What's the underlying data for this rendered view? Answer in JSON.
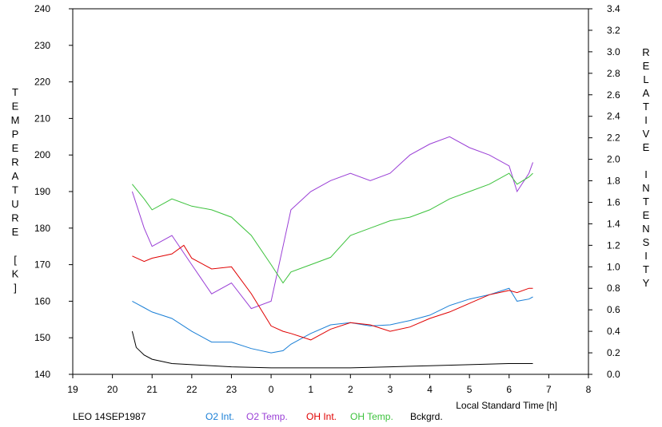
{
  "chart_data": {
    "type": "line",
    "title": "",
    "xlabel": "Local Standard Time [h]",
    "ylabel_left": "TEMPERATURE [K]",
    "ylabel_right": "RELATIVE INTENSITY",
    "x_ticks": [
      "19",
      "20",
      "21",
      "22",
      "23",
      "0",
      "1",
      "2",
      "3",
      "4",
      "5",
      "6",
      "7",
      "8"
    ],
    "xlim": [
      19,
      32
    ],
    "y_left_ticks": [
      "140",
      "150",
      "160",
      "170",
      "180",
      "190",
      "200",
      "210",
      "220",
      "230",
      "240"
    ],
    "ylim_left": [
      140,
      240
    ],
    "y_right_ticks": [
      "0.0",
      "0.2",
      "0.4",
      "0.6",
      "0.8",
      "1.0",
      "1.2",
      "1.4",
      "1.6",
      "1.8",
      "2.0",
      "2.2",
      "2.4",
      "2.6",
      "2.8",
      "3.0",
      "3.2",
      "3.4"
    ],
    "ylim_right": [
      0,
      3.4
    ],
    "caption": "LEO 14SEP1987",
    "series": [
      {
        "name": "O2 Int.",
        "color": "#1a7fd6",
        "axis": "right",
        "x": [
          20.5,
          20.8,
          21.0,
          21.5,
          22.0,
          22.5,
          23.0,
          23.5,
          24.0,
          24.3,
          24.5,
          25.0,
          25.5,
          26.0,
          26.5,
          27.0,
          27.5,
          28.0,
          28.5,
          29.0,
          29.5,
          30.0,
          30.2,
          30.5,
          30.6
        ],
        "y": [
          0.68,
          0.62,
          0.58,
          0.52,
          0.4,
          0.3,
          0.3,
          0.24,
          0.2,
          0.22,
          0.28,
          0.38,
          0.46,
          0.48,
          0.45,
          0.46,
          0.5,
          0.55,
          0.64,
          0.7,
          0.74,
          0.8,
          0.68,
          0.7,
          0.72
        ]
      },
      {
        "name": "O2 Temp.",
        "color": "#9a3fd6",
        "axis": "left",
        "x": [
          20.5,
          20.8,
          21.0,
          21.5,
          22.0,
          22.5,
          23.0,
          23.5,
          24.0,
          24.3,
          24.5,
          25.0,
          25.5,
          26.0,
          26.5,
          27.0,
          27.5,
          28.0,
          28.5,
          29.0,
          29.5,
          30.0,
          30.2,
          30.5,
          30.6
        ],
        "y": [
          190,
          180,
          175,
          178,
          170,
          162,
          165,
          158,
          160,
          175,
          185,
          190,
          193,
          195,
          193,
          195,
          200,
          203,
          205,
          202,
          200,
          197,
          190,
          195,
          198
        ]
      },
      {
        "name": "OH Int.",
        "color": "#e00000",
        "axis": "right",
        "x": [
          20.5,
          20.8,
          21.0,
          21.5,
          21.8,
          22.0,
          22.5,
          23.0,
          23.5,
          24.0,
          24.3,
          24.5,
          25.0,
          25.5,
          26.0,
          26.5,
          27.0,
          27.5,
          28.0,
          28.5,
          29.0,
          29.5,
          30.0,
          30.2,
          30.5,
          30.6
        ],
        "y": [
          1.1,
          1.05,
          1.08,
          1.12,
          1.2,
          1.08,
          0.98,
          1.0,
          0.75,
          0.45,
          0.4,
          0.38,
          0.32,
          0.42,
          0.48,
          0.46,
          0.4,
          0.44,
          0.52,
          0.58,
          0.66,
          0.74,
          0.78,
          0.76,
          0.8,
          0.8
        ]
      },
      {
        "name": "OH Temp.",
        "color": "#3cc23c",
        "axis": "left",
        "x": [
          20.5,
          20.8,
          21.0,
          21.5,
          22.0,
          22.5,
          23.0,
          23.5,
          24.0,
          24.3,
          24.5,
          25.0,
          25.5,
          26.0,
          26.5,
          27.0,
          27.5,
          28.0,
          28.5,
          29.0,
          29.5,
          30.0,
          30.2,
          30.5,
          30.6
        ],
        "y": [
          192,
          188,
          185,
          188,
          186,
          185,
          183,
          178,
          170,
          165,
          168,
          170,
          172,
          178,
          180,
          182,
          183,
          185,
          188,
          190,
          192,
          195,
          192,
          194,
          195
        ]
      },
      {
        "name": "Bckgrd.",
        "color": "#000000",
        "axis": "right",
        "x": [
          20.5,
          20.6,
          20.8,
          21.0,
          21.5,
          22.0,
          22.5,
          23.0,
          24.0,
          25.0,
          26.0,
          27.0,
          28.0,
          29.0,
          30.0,
          30.6
        ],
        "y": [
          0.4,
          0.25,
          0.18,
          0.14,
          0.1,
          0.09,
          0.08,
          0.07,
          0.06,
          0.06,
          0.06,
          0.07,
          0.08,
          0.09,
          0.1,
          0.1
        ]
      }
    ]
  }
}
